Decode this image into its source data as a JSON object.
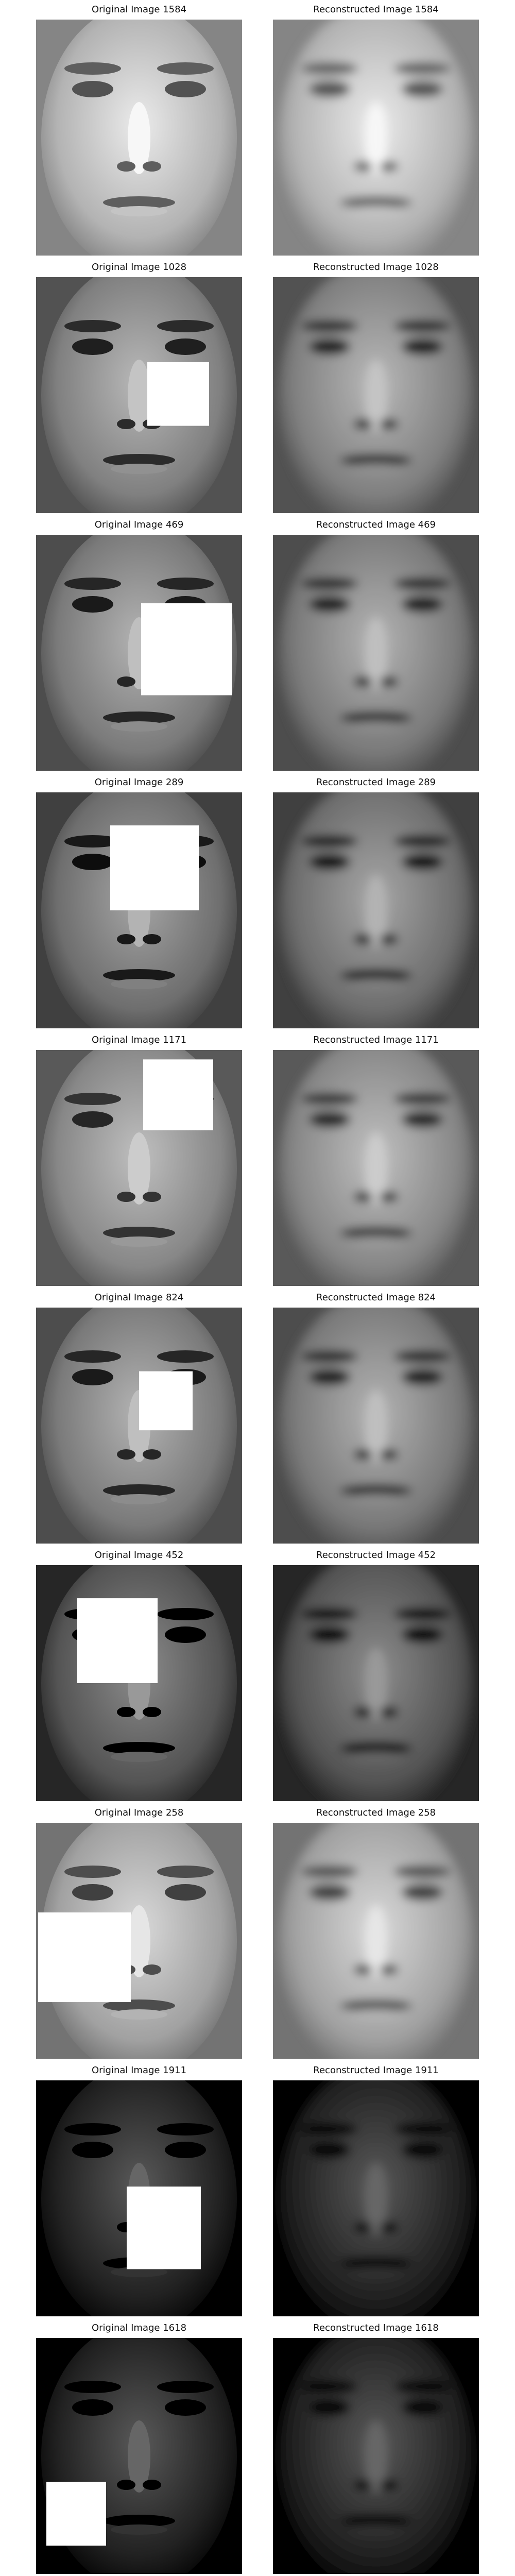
{
  "figure": {
    "rows": [
      {
        "original_title": "Original Image 1584",
        "reconstructed_title": "Reconstructed Image 1584",
        "tone": 0.62,
        "mask": null
      },
      {
        "original_title": "Original Image 1028",
        "reconstructed_title": "Reconstructed Image 1028",
        "tone": 0.42,
        "mask": "mid-right"
      },
      {
        "original_title": "Original Image 469",
        "reconstructed_title": "Reconstructed Image 469",
        "tone": 0.4,
        "mask": "lower-right"
      },
      {
        "original_title": "Original Image 289",
        "reconstructed_title": "Reconstructed Image 289",
        "tone": 0.35,
        "mask": "upper-middle"
      },
      {
        "original_title": "Original Image 1171",
        "reconstructed_title": "Reconstructed Image 1171",
        "tone": 0.45,
        "mask": "upper-right"
      },
      {
        "original_title": "Original Image 824",
        "reconstructed_title": "Reconstructed Image 824",
        "tone": 0.4,
        "mask": "middle-small"
      },
      {
        "original_title": "Original Image 452",
        "reconstructed_title": "Reconstructed Image 452",
        "tone": 0.25,
        "mask": "upper-left"
      },
      {
        "original_title": "Original Image 258",
        "reconstructed_title": "Reconstructed Image 258",
        "tone": 0.55,
        "mask": "mid-left-large"
      },
      {
        "original_title": "Original Image 1911",
        "reconstructed_title": "Reconstructed Image 1911",
        "tone": 0.05,
        "mask": "lower-right-large"
      },
      {
        "original_title": "Original Image 1618",
        "reconstructed_title": "Reconstructed Image 1618",
        "tone": 0.05,
        "mask": "bottom-left"
      }
    ]
  }
}
